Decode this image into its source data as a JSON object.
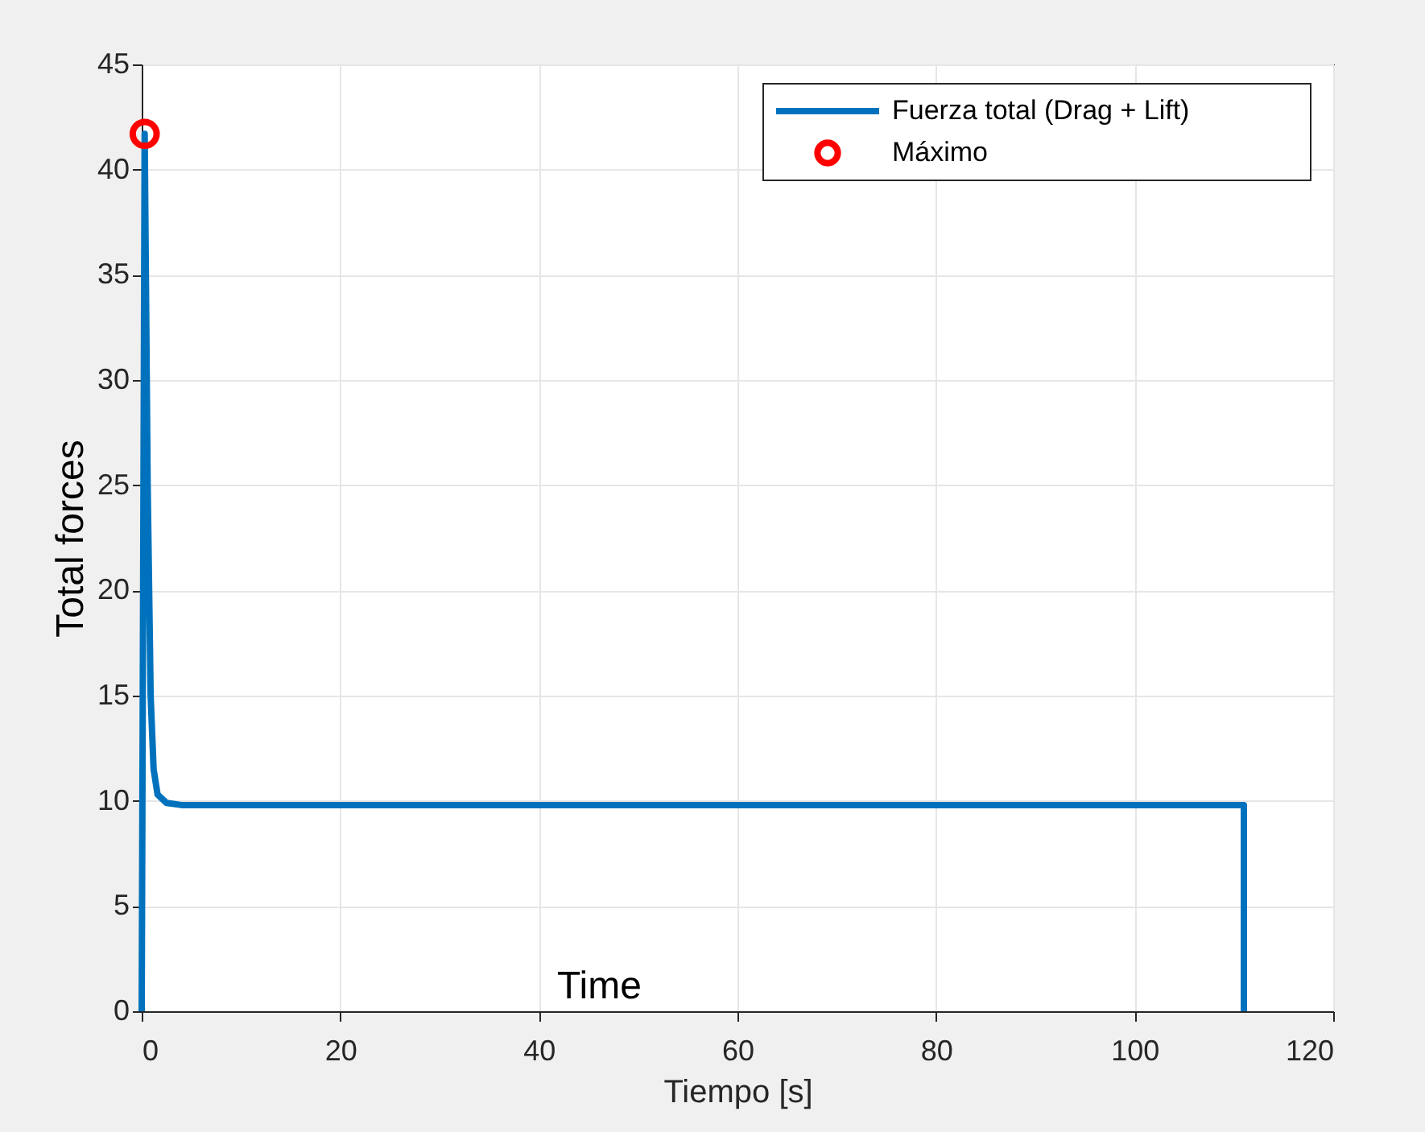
{
  "chart_data": {
    "type": "line",
    "xlabel": "Tiempo [s]",
    "ylabel": "Total forces",
    "xlim": [
      0,
      120
    ],
    "xticks": [
      0,
      20,
      40,
      60,
      80,
      100,
      120
    ],
    "ylim": [
      0,
      45
    ],
    "yticks": [
      0,
      5,
      10,
      15,
      20,
      25,
      30,
      35,
      40,
      45
    ],
    "grid": true,
    "legend": "top right",
    "annotations": [
      "Time"
    ],
    "series": [
      {
        "name": "Fuerza total (Drag + Lift)",
        "type": "line",
        "color": "#0072bd",
        "marker": "none",
        "line_style": "solid",
        "x": [
          0,
          0.3,
          0.6,
          0.9,
          1.2,
          1.6,
          2.5,
          4,
          111,
          111
        ],
        "values": [
          0,
          41.7,
          25,
          15,
          11.5,
          10.3,
          9.9,
          9.8,
          9.8,
          0
        ]
      },
      {
        "name": "Máximo",
        "type": "scatter",
        "color": "#ff0000",
        "marker": "circle",
        "x": [
          0.3
        ],
        "values": [
          41.7
        ]
      }
    ]
  }
}
